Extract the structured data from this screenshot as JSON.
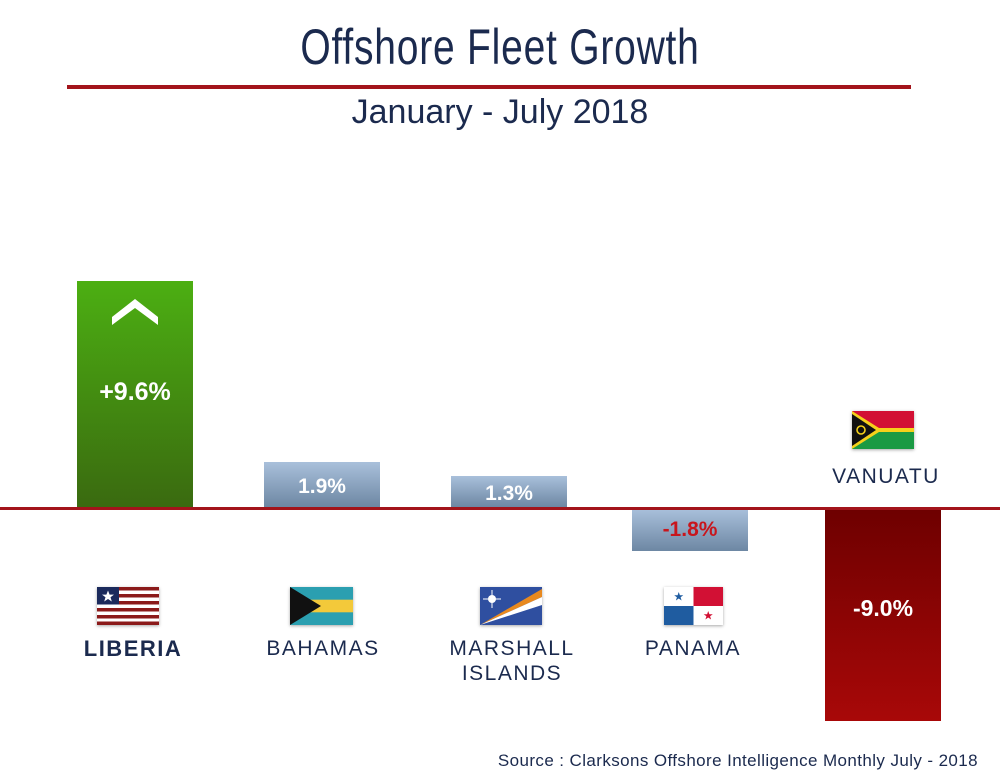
{
  "chart_data": {
    "type": "bar",
    "title": "Offshore Fleet Growth",
    "subtitle": "January - July 2018",
    "xlabel": "",
    "ylabel": "",
    "unit": "%",
    "ylim": [
      -9.0,
      9.6
    ],
    "grid": false,
    "categories": [
      "LIBERIA",
      "BAHAMAS",
      "MARSHALL ISLANDS",
      "PANAMA",
      "VANUATU"
    ],
    "values": [
      9.6,
      1.9,
      1.3,
      -1.8,
      -9.0
    ],
    "data_labels": [
      "+9.6%",
      "1.9%",
      "1.3%",
      "-1.8%",
      "-9.0%"
    ],
    "highlight": "LIBERIA",
    "source": "Source : Clarksons Offshore Intelligence Monthly July - 2018"
  },
  "colors": {
    "navy": "#1b2a4e",
    "rule_red": "#a3141b",
    "liberia_green_top": "#4caf12",
    "liberia_green_bottom": "#3a6a10",
    "neutral_blue_top": "#a9c0db",
    "neutral_blue_bottom": "#6d87a3",
    "vanuatu_red_top": "#6e0000",
    "vanuatu_red_bottom": "#a80808",
    "negative_text": "#c8161d"
  },
  "icons": {
    "liberia_bar": "chevron-up-icon"
  }
}
